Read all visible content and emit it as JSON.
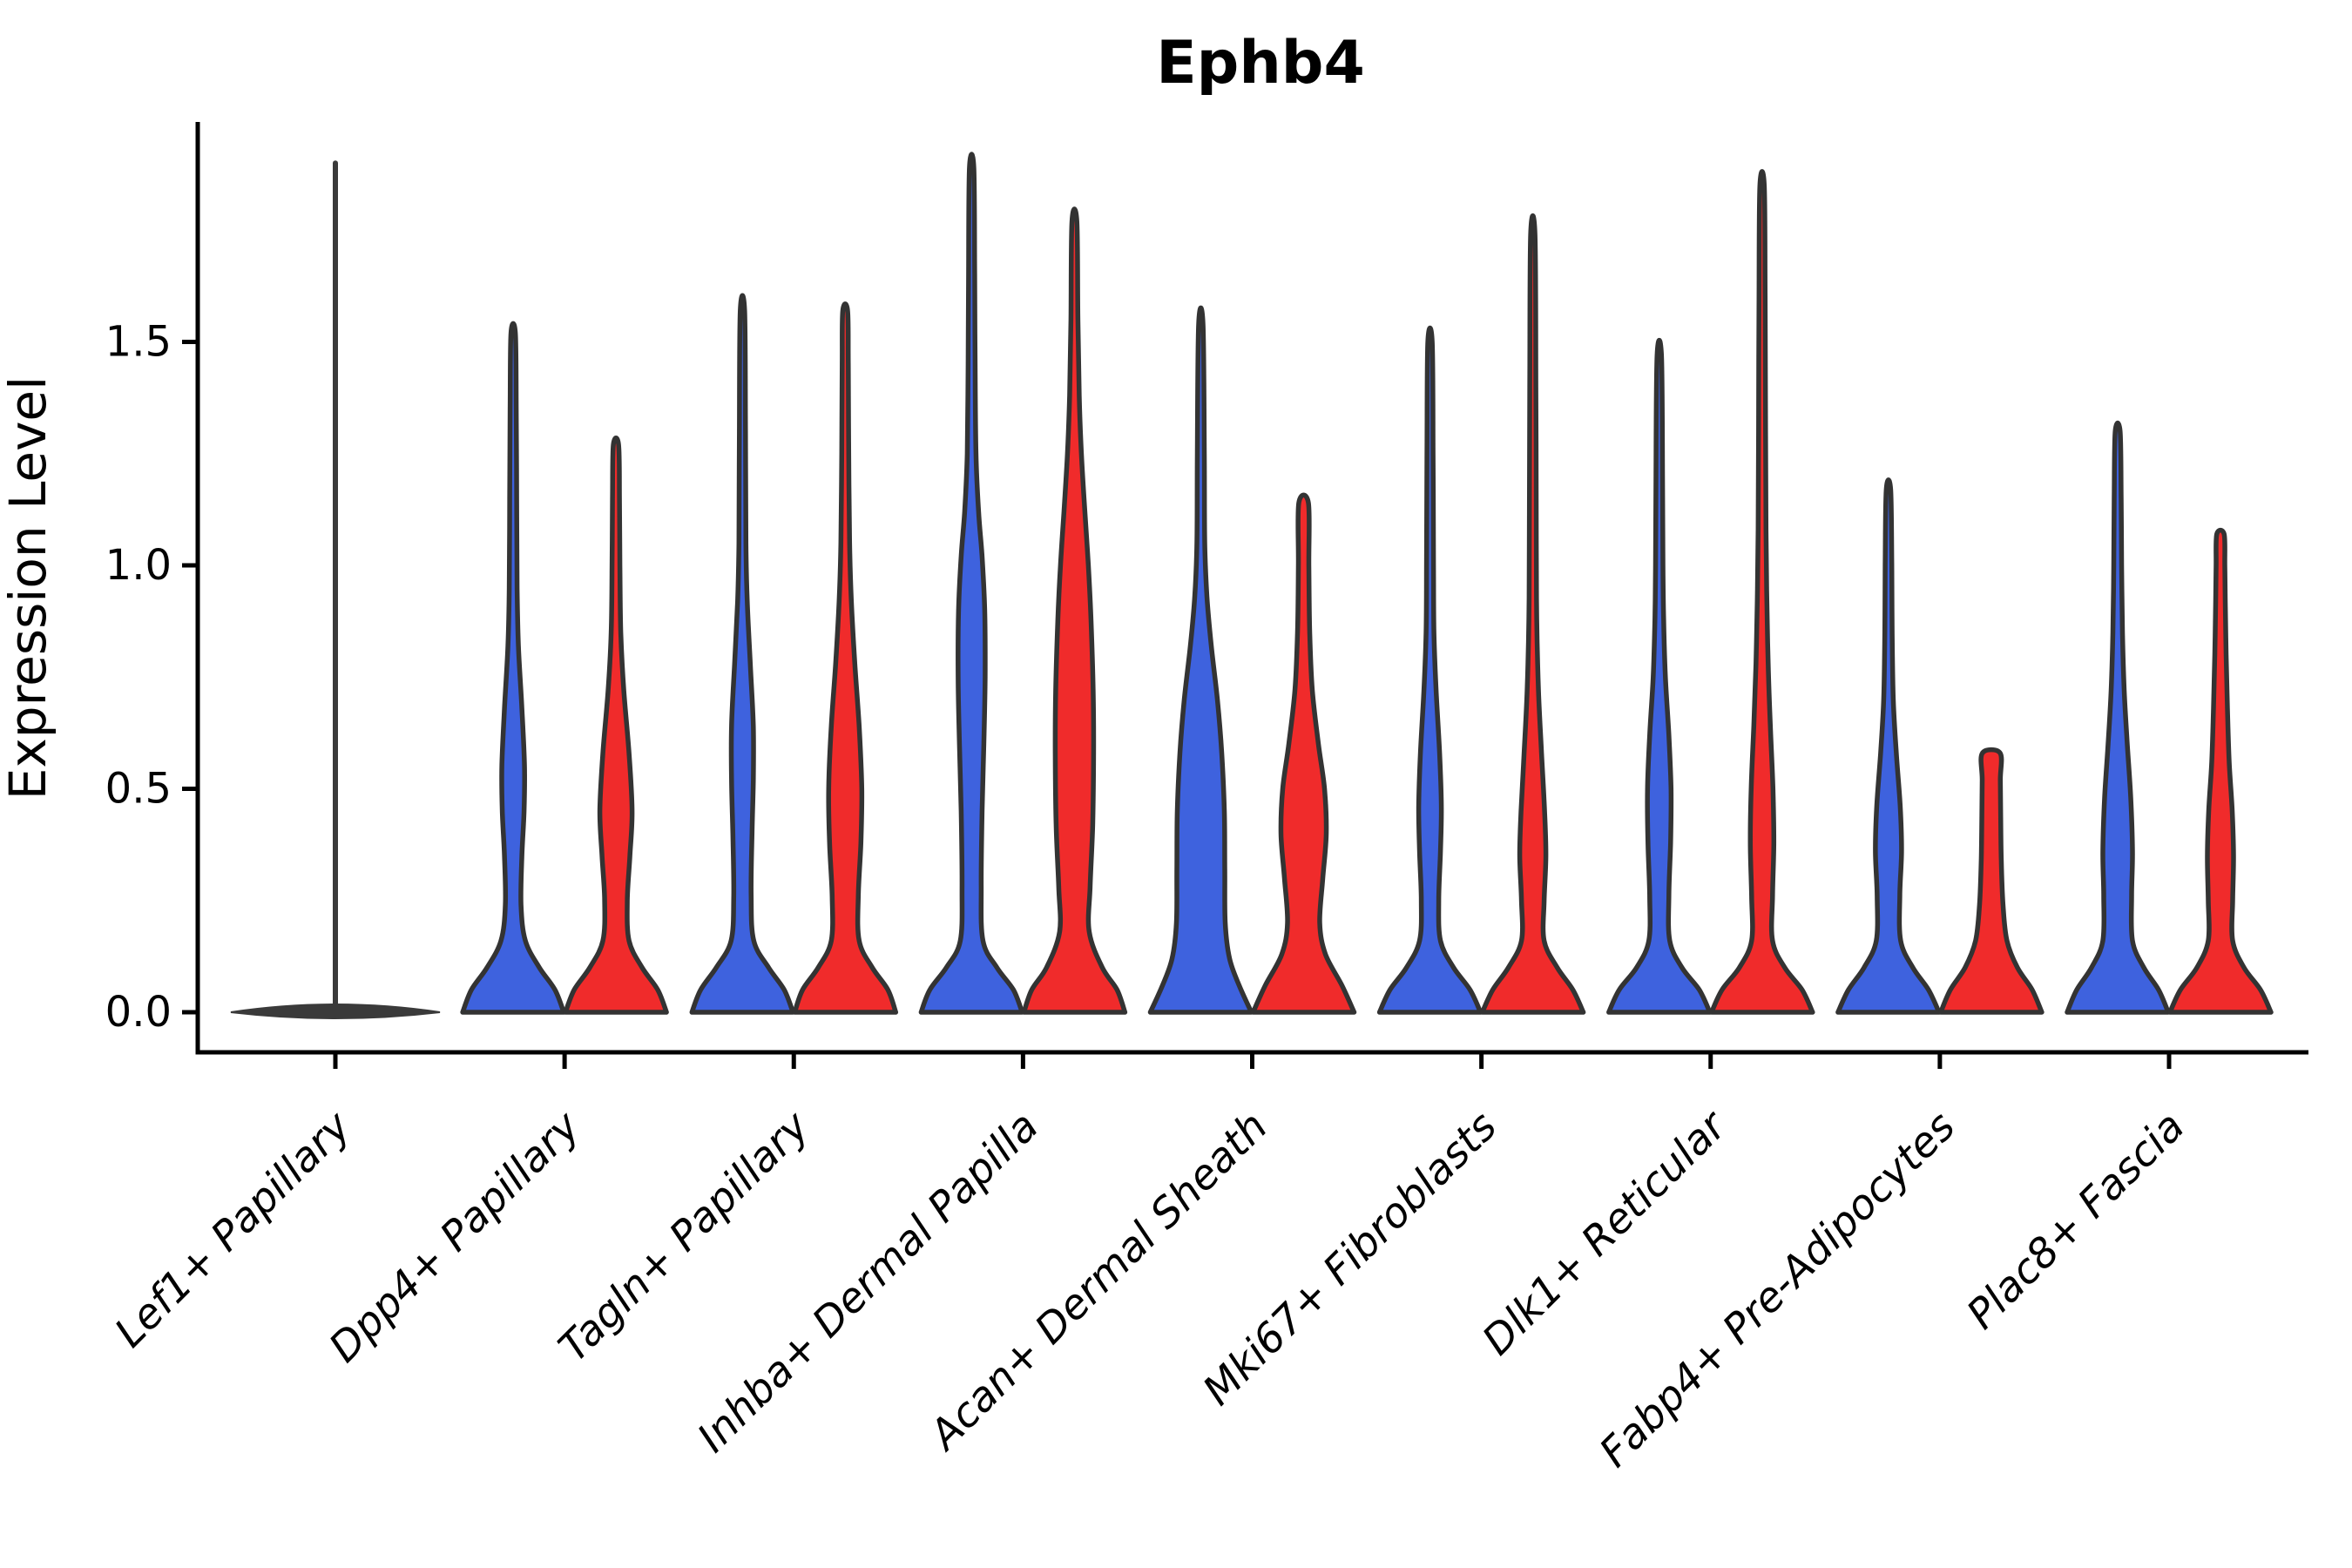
{
  "title": "Ephb4",
  "y_axis": {
    "label": "Expression Level",
    "ticks": [
      "0.0",
      "0.5",
      "1.0",
      "1.5"
    ],
    "tick_values": [
      0.0,
      0.5,
      1.0,
      1.5
    ]
  },
  "colors": {
    "blue": "#3E62DE",
    "red": "#F02B2B",
    "outline": "#333333",
    "collapsed_violin": "#3A3A3A",
    "axis": "#000000"
  },
  "chart_data": {
    "type": "violin",
    "split": true,
    "title": "Ephb4",
    "xlabel": "",
    "ylabel": "Expression Level",
    "ylim": [
      0,
      1.97
    ],
    "y_ticks": [
      0.0,
      0.5,
      1.0,
      1.5
    ],
    "grid": false,
    "legend": "none",
    "categories": [
      "Lef1+ Papillary",
      "Dpp4+ Papillary",
      "Tagln+ Papillary",
      "Inhba+ Dermal Papilla",
      "Acan+ Dermal Sheath",
      "Mki67+ Fibroblasts",
      "Dlk1+ Reticular",
      "Fabp4+ Pre-Adipocytes",
      "Plac8+ Fascia"
    ],
    "groups": [
      "blue",
      "red"
    ],
    "max_expression": {
      "blue": [
        1.9,
        1.52,
        1.57,
        1.89,
        1.54,
        1.5,
        1.47,
        1.17,
        1.3
      ],
      "red": [
        1.9,
        1.27,
        1.57,
        1.77,
        1.14,
        1.74,
        1.85,
        0.58,
        1.07
      ]
    },
    "violins": [
      {
        "category": "Lef1+ Papillary",
        "collapsed": true,
        "stem_top": 1.9,
        "lens_halfwidth": 120,
        "blue": null,
        "red": null
      },
      {
        "category": "Dpp4+ Papillary",
        "blue": {
          "top": 1.52,
          "profile": [
            [
              0,
              58
            ],
            [
              0.05,
              48
            ],
            [
              0.1,
              30
            ],
            [
              0.16,
              14
            ],
            [
              0.24,
              9
            ],
            [
              0.35,
              10
            ],
            [
              0.45,
              12.5
            ],
            [
              0.55,
              13
            ],
            [
              0.68,
              10
            ],
            [
              0.82,
              6
            ],
            [
              0.95,
              4.5
            ],
            [
              1.15,
              4
            ],
            [
              1.35,
              3.5
            ],
            [
              1.52,
              2.5
            ]
          ]
        },
        "red": {
          "top": 1.27,
          "profile": [
            [
              0,
              58
            ],
            [
              0.05,
              48
            ],
            [
              0.1,
              30
            ],
            [
              0.16,
              15
            ],
            [
              0.25,
              13
            ],
            [
              0.35,
              16
            ],
            [
              0.45,
              18.5
            ],
            [
              0.58,
              15
            ],
            [
              0.72,
              9
            ],
            [
              0.85,
              5.5
            ],
            [
              1.0,
              4.5
            ],
            [
              1.15,
              4
            ],
            [
              1.27,
              3
            ]
          ]
        }
      },
      {
        "category": "Tagln+ Papillary",
        "blue": {
          "top": 1.57,
          "profile": [
            [
              0,
              58
            ],
            [
              0.05,
              48
            ],
            [
              0.1,
              30
            ],
            [
              0.16,
              13
            ],
            [
              0.26,
              10
            ],
            [
              0.4,
              11
            ],
            [
              0.52,
              12.5
            ],
            [
              0.64,
              12.5
            ],
            [
              0.78,
              9
            ],
            [
              0.92,
              5.5
            ],
            [
              1.05,
              4
            ],
            [
              1.3,
              3.5
            ],
            [
              1.57,
              2.5
            ]
          ]
        },
        "red": {
          "top": 1.57,
          "profile": [
            [
              0,
              58
            ],
            [
              0.05,
              49
            ],
            [
              0.1,
              31
            ],
            [
              0.16,
              16
            ],
            [
              0.26,
              15
            ],
            [
              0.38,
              18
            ],
            [
              0.5,
              19
            ],
            [
              0.64,
              16
            ],
            [
              0.78,
              11
            ],
            [
              0.92,
              7
            ],
            [
              1.05,
              5
            ],
            [
              1.25,
              4
            ],
            [
              1.45,
              3.5
            ],
            [
              1.57,
              2.8
            ]
          ]
        }
      },
      {
        "category": "Inhba+ Dermal Papilla",
        "blue": {
          "top": 1.89,
          "profile": [
            [
              0,
              58
            ],
            [
              0.05,
              48
            ],
            [
              0.1,
              29
            ],
            [
              0.16,
              13
            ],
            [
              0.28,
              11
            ],
            [
              0.45,
              12
            ],
            [
              0.6,
              14
            ],
            [
              0.75,
              15.5
            ],
            [
              0.9,
              15
            ],
            [
              1.02,
              12
            ],
            [
              1.12,
              8
            ],
            [
              1.25,
              5
            ],
            [
              1.45,
              4
            ],
            [
              1.65,
              3.5
            ],
            [
              1.89,
              2.5
            ]
          ]
        },
        "red": {
          "top": 1.77,
          "profile": [
            [
              0,
              58
            ],
            [
              0.05,
              49
            ],
            [
              0.1,
              32
            ],
            [
              0.18,
              17
            ],
            [
              0.28,
              18
            ],
            [
              0.42,
              21
            ],
            [
              0.58,
              22
            ],
            [
              0.72,
              21.5
            ],
            [
              0.88,
              19
            ],
            [
              1.0,
              16
            ],
            [
              1.12,
              12
            ],
            [
              1.25,
              8
            ],
            [
              1.38,
              5.5
            ],
            [
              1.55,
              4
            ],
            [
              1.77,
              2.8
            ]
          ]
        }
      },
      {
        "category": "Acan+ Dermal Sheath",
        "blue": {
          "top": 1.54,
          "profile": [
            [
              0,
              58
            ],
            [
              0.06,
              44
            ],
            [
              0.12,
              33
            ],
            [
              0.2,
              28
            ],
            [
              0.32,
              27.5
            ],
            [
              0.45,
              27
            ],
            [
              0.58,
              24
            ],
            [
              0.7,
              19
            ],
            [
              0.82,
              12
            ],
            [
              0.93,
              7
            ],
            [
              1.05,
              4.5
            ],
            [
              1.25,
              4
            ],
            [
              1.54,
              2.5
            ]
          ]
        },
        "red": {
          "top": 1.14,
          "flat_top": true,
          "profile": [
            [
              0,
              58
            ],
            [
              0.06,
              44
            ],
            [
              0.13,
              25
            ],
            [
              0.2,
              18.5
            ],
            [
              0.3,
              22
            ],
            [
              0.4,
              26
            ],
            [
              0.5,
              24
            ],
            [
              0.6,
              17
            ],
            [
              0.72,
              10
            ],
            [
              0.85,
              7
            ],
            [
              1.0,
              6
            ],
            [
              1.14,
              5.5
            ]
          ]
        }
      },
      {
        "category": "Mki67+ Fibroblasts",
        "blue": {
          "top": 1.5,
          "profile": [
            [
              0,
              58
            ],
            [
              0.05,
              46
            ],
            [
              0.1,
              27
            ],
            [
              0.16,
              12
            ],
            [
              0.25,
              10
            ],
            [
              0.36,
              12
            ],
            [
              0.46,
              13
            ],
            [
              0.58,
              11
            ],
            [
              0.72,
              7
            ],
            [
              0.85,
              4.5
            ],
            [
              1.0,
              4
            ],
            [
              1.25,
              3.5
            ],
            [
              1.5,
              2.5
            ]
          ]
        },
        "red": {
          "top": 1.74,
          "profile": [
            [
              0,
              58
            ],
            [
              0.05,
              46
            ],
            [
              0.1,
              28
            ],
            [
              0.16,
              13
            ],
            [
              0.25,
              13
            ],
            [
              0.35,
              15
            ],
            [
              0.45,
              13.5
            ],
            [
              0.58,
              10
            ],
            [
              0.72,
              6.5
            ],
            [
              0.88,
              4.5
            ],
            [
              1.05,
              4
            ],
            [
              1.4,
              3.5
            ],
            [
              1.74,
              2.5
            ]
          ]
        }
      },
      {
        "category": "Dlk1+ Reticular",
        "blue": {
          "top": 1.47,
          "profile": [
            [
              0,
              58
            ],
            [
              0.05,
              46
            ],
            [
              0.1,
              26
            ],
            [
              0.16,
              12
            ],
            [
              0.26,
              11
            ],
            [
              0.38,
              13
            ],
            [
              0.5,
              13.5
            ],
            [
              0.62,
              11
            ],
            [
              0.75,
              7
            ],
            [
              0.88,
              5
            ],
            [
              1.0,
              4.2
            ],
            [
              1.2,
              3.8
            ],
            [
              1.47,
              2.5
            ]
          ]
        },
        "red": {
          "top": 1.85,
          "profile": [
            [
              0,
              58
            ],
            [
              0.05,
              46
            ],
            [
              0.1,
              26
            ],
            [
              0.16,
              12
            ],
            [
              0.26,
              12
            ],
            [
              0.38,
              13.5
            ],
            [
              0.5,
              12.5
            ],
            [
              0.64,
              9.5
            ],
            [
              0.78,
              7
            ],
            [
              0.92,
              5.5
            ],
            [
              1.08,
              4.5
            ],
            [
              1.3,
              4
            ],
            [
              1.6,
              3.5
            ],
            [
              1.85,
              2.5
            ]
          ]
        }
      },
      {
        "category": "Fabp4+ Pre-Adipocytes",
        "blue": {
          "top": 1.17,
          "profile": [
            [
              0,
              58
            ],
            [
              0.05,
              46
            ],
            [
              0.1,
              28
            ],
            [
              0.16,
              14
            ],
            [
              0.26,
              13
            ],
            [
              0.36,
              15
            ],
            [
              0.46,
              13.5
            ],
            [
              0.58,
              9
            ],
            [
              0.7,
              5.5
            ],
            [
              0.85,
              4.2
            ],
            [
              1.0,
              3.8
            ],
            [
              1.17,
              2.5
            ]
          ]
        },
        "red": {
          "top": 0.58,
          "flat_top": true,
          "profile": [
            [
              0,
              58
            ],
            [
              0.05,
              47
            ],
            [
              0.1,
              30
            ],
            [
              0.16,
              18
            ],
            [
              0.24,
              13.5
            ],
            [
              0.34,
              11.5
            ],
            [
              0.44,
              10.8
            ],
            [
              0.52,
              10.4
            ],
            [
              0.58,
              10.2
            ]
          ]
        }
      },
      {
        "category": "Plac8+ Fascia",
        "blue": {
          "top": 1.3,
          "profile": [
            [
              0,
              58
            ],
            [
              0.05,
              47
            ],
            [
              0.1,
              30
            ],
            [
              0.16,
              17
            ],
            [
              0.26,
              16
            ],
            [
              0.36,
              17
            ],
            [
              0.48,
              15
            ],
            [
              0.6,
              11
            ],
            [
              0.72,
              7.5
            ],
            [
              0.85,
              5.5
            ],
            [
              1.0,
              4.5
            ],
            [
              1.15,
              4
            ],
            [
              1.3,
              2.8
            ]
          ]
        },
        "red": {
          "top": 1.07,
          "profile": [
            [
              0,
              58
            ],
            [
              0.05,
              46
            ],
            [
              0.1,
              27
            ],
            [
              0.16,
              14
            ],
            [
              0.25,
              14
            ],
            [
              0.35,
              15
            ],
            [
              0.45,
              13.5
            ],
            [
              0.56,
              10
            ],
            [
              0.68,
              8
            ],
            [
              0.8,
              6.5
            ],
            [
              0.92,
              5.5
            ],
            [
              1.0,
              5
            ],
            [
              1.07,
              4.2
            ]
          ]
        }
      }
    ]
  }
}
